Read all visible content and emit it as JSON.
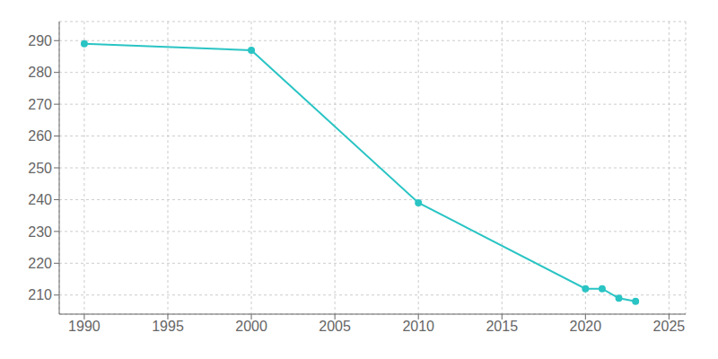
{
  "chart_data": {
    "type": "line",
    "x": [
      1990,
      2000,
      2010,
      2020,
      2021,
      2022,
      2023
    ],
    "values": [
      289,
      287,
      239,
      212,
      212,
      209,
      208
    ],
    "color": "#2ac4c4",
    "marker": "circle",
    "xlim": [
      1988.5,
      2026
    ],
    "ylim": [
      204,
      296
    ],
    "xticks": [
      1990,
      1995,
      2000,
      2005,
      2010,
      2015,
      2020,
      2025
    ],
    "yticks": [
      210,
      220,
      230,
      240,
      250,
      260,
      270,
      280,
      290
    ],
    "grid": true
  }
}
